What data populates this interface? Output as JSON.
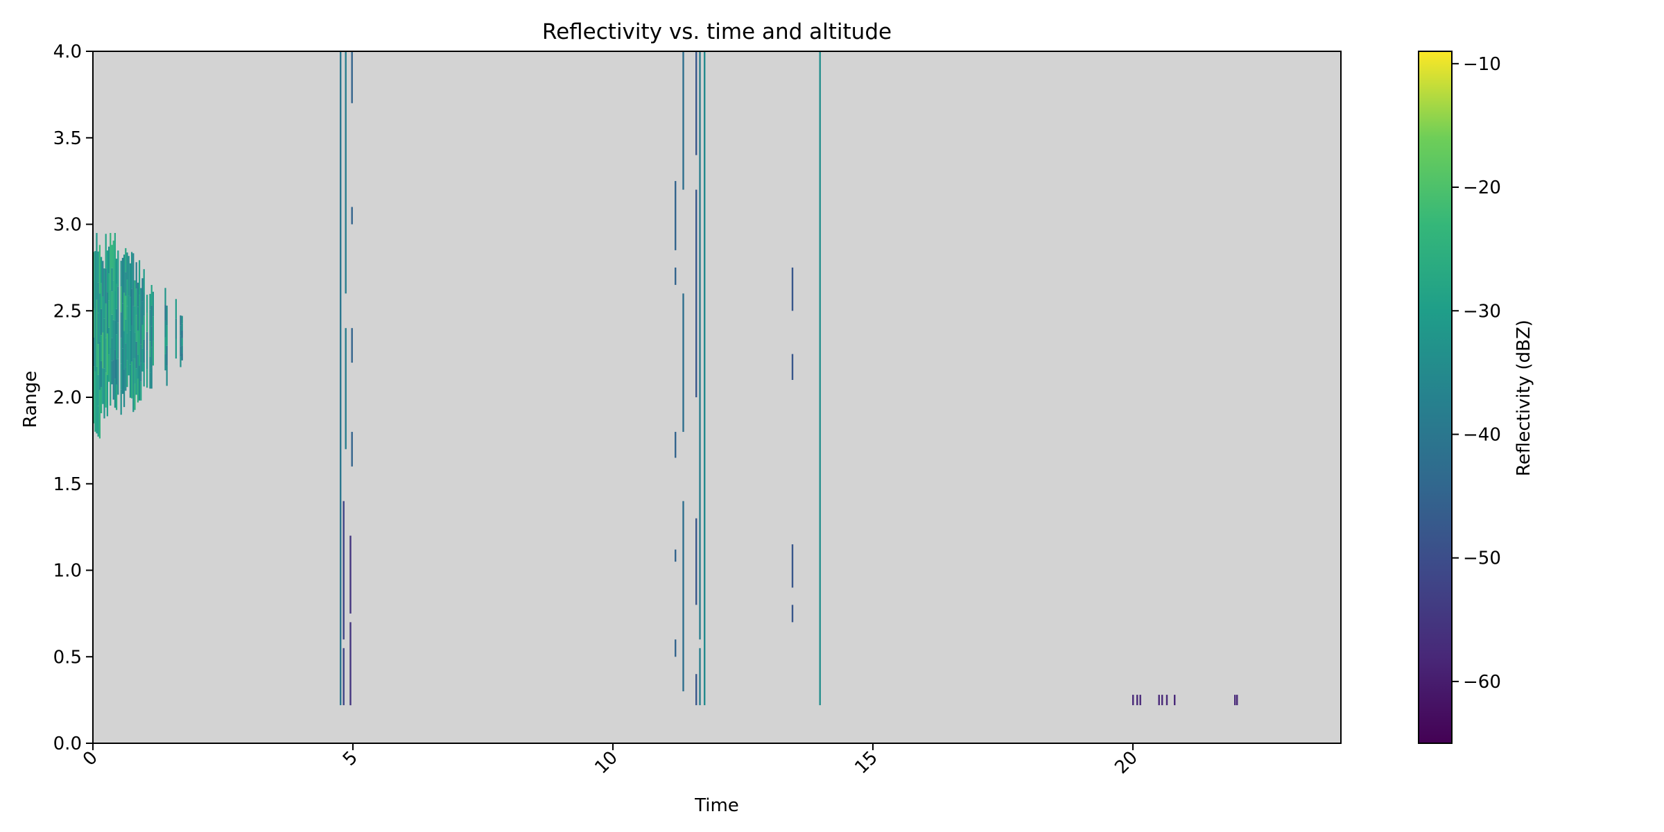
{
  "chart_data": {
    "type": "heatmap",
    "title": "Reflectivity vs. time and altitude",
    "xlabel": "Time",
    "ylabel": "Range",
    "xlim": [
      0,
      24
    ],
    "ylim": [
      0,
      4.0
    ],
    "x_ticks": [
      0,
      5,
      10,
      15,
      20
    ],
    "x_tick_labels": [
      "0",
      "5",
      "10",
      "15",
      "20"
    ],
    "y_ticks": [
      0.0,
      0.5,
      1.0,
      1.5,
      2.0,
      2.5,
      3.0,
      3.5,
      4.0
    ],
    "y_tick_labels": [
      "0.0",
      "0.5",
      "1.0",
      "1.5",
      "2.0",
      "2.5",
      "3.0",
      "3.5",
      "4.0"
    ],
    "background_color": "#d3d3d3",
    "colorbar": {
      "label": "Reflectivity (dBZ)",
      "colormap": "viridis",
      "vmin": -65,
      "vmax": -9,
      "ticks": [
        -10,
        -20,
        -30,
        -40,
        -50,
        -60
      ],
      "tick_labels": [
        "−10",
        "−20",
        "−30",
        "−40",
        "−50",
        "−60"
      ]
    },
    "cloud_region": {
      "t_start": 0.0,
      "t_end": 1.75,
      "base_min": 1.6,
      "top_max": 2.95,
      "dbz_range": [
        -45,
        -20
      ]
    },
    "streaks": [
      {
        "t": 4.76,
        "ranges": [
          [
            0.22,
            4.0
          ]
        ],
        "dbz": -40
      },
      {
        "t": 4.82,
        "ranges": [
          [
            0.22,
            0.55
          ],
          [
            0.6,
            1.4
          ]
        ],
        "dbz": -52
      },
      {
        "t": 4.86,
        "ranges": [
          [
            1.7,
            2.4
          ],
          [
            2.6,
            4.0
          ]
        ],
        "dbz": -38
      },
      {
        "t": 4.95,
        "ranges": [
          [
            0.22,
            0.7
          ],
          [
            0.75,
            1.2
          ]
        ],
        "dbz": -55
      },
      {
        "t": 4.98,
        "ranges": [
          [
            1.6,
            1.8
          ],
          [
            2.2,
            2.4
          ],
          [
            3.0,
            3.1
          ],
          [
            3.7,
            4.0
          ]
        ],
        "dbz": -45
      },
      {
        "t": 11.2,
        "ranges": [
          [
            0.5,
            0.6
          ],
          [
            1.05,
            1.12
          ],
          [
            1.65,
            1.8
          ],
          [
            2.65,
            2.75
          ],
          [
            2.85,
            3.25
          ]
        ],
        "dbz": -45
      },
      {
        "t": 11.35,
        "ranges": [
          [
            0.3,
            1.4
          ],
          [
            1.8,
            2.6
          ],
          [
            3.2,
            4.0
          ]
        ],
        "dbz": -42
      },
      {
        "t": 11.6,
        "ranges": [
          [
            0.22,
            0.4
          ],
          [
            0.8,
            1.3
          ],
          [
            2.0,
            3.2
          ],
          [
            3.4,
            4.0
          ]
        ],
        "dbz": -48
      },
      {
        "t": 11.67,
        "ranges": [
          [
            0.22,
            0.55
          ],
          [
            0.6,
            4.0
          ]
        ],
        "dbz": -38
      },
      {
        "t": 11.76,
        "ranges": [
          [
            0.22,
            4.0
          ]
        ],
        "dbz": -35
      },
      {
        "t": 13.45,
        "ranges": [
          [
            0.7,
            0.8
          ],
          [
            0.9,
            1.15
          ],
          [
            2.1,
            2.25
          ],
          [
            2.5,
            2.75
          ]
        ],
        "dbz": -48
      },
      {
        "t": 13.98,
        "ranges": [
          [
            0.22,
            4.0
          ]
        ],
        "dbz": -34
      },
      {
        "t": 20.0,
        "ranges": [
          [
            0.22,
            0.28
          ]
        ],
        "dbz": -58
      },
      {
        "t": 20.08,
        "ranges": [
          [
            0.22,
            0.28
          ]
        ],
        "dbz": -58
      },
      {
        "t": 20.14,
        "ranges": [
          [
            0.22,
            0.28
          ]
        ],
        "dbz": -58
      },
      {
        "t": 20.5,
        "ranges": [
          [
            0.22,
            0.28
          ]
        ],
        "dbz": -58
      },
      {
        "t": 20.56,
        "ranges": [
          [
            0.22,
            0.28
          ]
        ],
        "dbz": -58
      },
      {
        "t": 20.65,
        "ranges": [
          [
            0.22,
            0.28
          ]
        ],
        "dbz": -58
      },
      {
        "t": 20.8,
        "ranges": [
          [
            0.22,
            0.28
          ]
        ],
        "dbz": -58
      },
      {
        "t": 21.96,
        "ranges": [
          [
            0.22,
            0.28
          ]
        ],
        "dbz": -58
      },
      {
        "t": 22.0,
        "ranges": [
          [
            0.22,
            0.28
          ]
        ],
        "dbz": -58
      }
    ]
  }
}
